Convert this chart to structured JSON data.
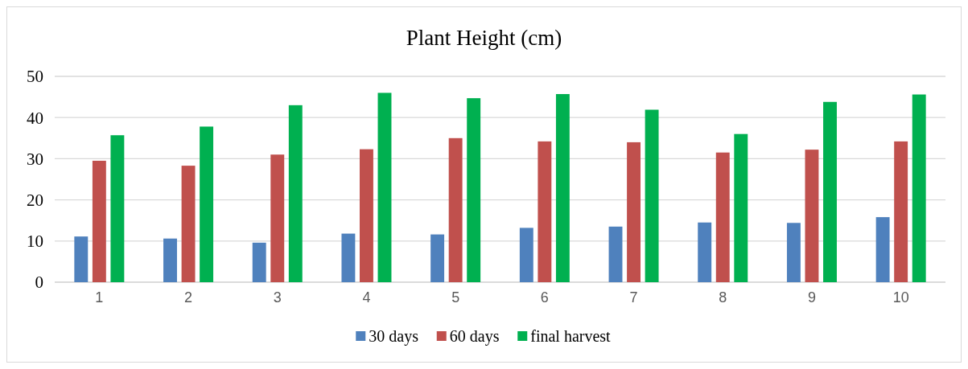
{
  "chart_data": {
    "type": "bar",
    "title": "Plant Height (cm)",
    "categories": [
      "1",
      "2",
      "3",
      "4",
      "5",
      "6",
      "7",
      "8",
      "9",
      "10"
    ],
    "series": [
      {
        "name": "30 days",
        "color": "#4f81bd",
        "values": [
          11.1,
          10.6,
          9.6,
          11.8,
          11.6,
          13.2,
          13.5,
          14.5,
          14.4,
          15.8
        ]
      },
      {
        "name": "60 days",
        "color": "#c0504d",
        "values": [
          29.5,
          28.3,
          31.0,
          32.3,
          35.0,
          34.2,
          34.0,
          31.5,
          32.2,
          34.2
        ]
      },
      {
        "name": "final harvest",
        "color": "#00b050",
        "values": [
          35.7,
          37.8,
          43.0,
          46.0,
          44.7,
          45.7,
          41.9,
          36.0,
          43.8,
          45.6
        ]
      }
    ],
    "ylim": [
      0,
      50
    ],
    "yticks": [
      0,
      10,
      20,
      30,
      40,
      50
    ],
    "grid": "y",
    "legend": "bottom"
  }
}
